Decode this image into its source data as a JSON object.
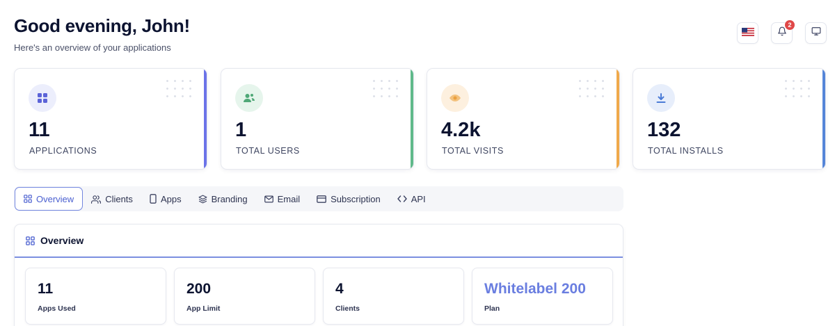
{
  "header": {
    "greeting": "Good evening, John!",
    "subtitle": "Here's an overview of your applications"
  },
  "top_actions": {
    "flag_icon": "us-flag-icon",
    "notifications_icon": "bell-icon",
    "notifications_count": "2",
    "display_icon": "monitor-icon"
  },
  "stats": [
    {
      "value": "11",
      "label": "APPLICATIONS",
      "icon": "grid-icon",
      "accent": "#6b73e8",
      "icon_bg": "#eceefc",
      "icon_color": "#5b63d8"
    },
    {
      "value": "1",
      "label": "TOTAL USERS",
      "icon": "users-icon",
      "accent": "#5fb98a",
      "icon_bg": "#e6f5ec",
      "icon_color": "#4fa877"
    },
    {
      "value": "4.2k",
      "label": "TOTAL VISITS",
      "icon": "eye-icon",
      "accent": "#f0a94a",
      "icon_bg": "#fdf0df",
      "icon_color": "#eaa040"
    },
    {
      "value": "132",
      "label": "TOTAL INSTALLS",
      "icon": "download-icon",
      "accent": "#5585d8",
      "icon_bg": "#e7eefb",
      "icon_color": "#4a7bd6"
    }
  ],
  "tabs": [
    {
      "label": "Overview",
      "icon": "grid-icon",
      "active": true
    },
    {
      "label": "Clients",
      "icon": "users-icon",
      "active": false
    },
    {
      "label": "Apps",
      "icon": "phone-icon",
      "active": false
    },
    {
      "label": "Branding",
      "icon": "layers-icon",
      "active": false
    },
    {
      "label": "Email",
      "icon": "mail-icon",
      "active": false
    },
    {
      "label": "Subscription",
      "icon": "credit-card-icon",
      "active": false
    },
    {
      "label": "API",
      "icon": "code-icon",
      "active": false
    }
  ],
  "overview": {
    "title": "Overview",
    "cards": [
      {
        "value": "11",
        "label": "Apps Used"
      },
      {
        "value": "200",
        "label": "App Limit"
      },
      {
        "value": "4",
        "label": "Clients"
      },
      {
        "value": "Whitelabel 200",
        "label": "Plan"
      }
    ]
  }
}
